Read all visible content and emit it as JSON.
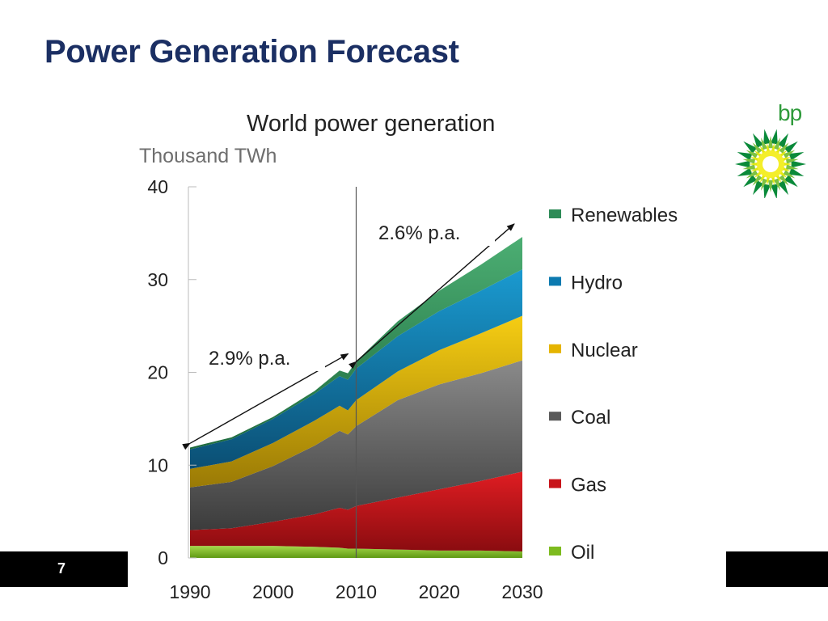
{
  "slide": {
    "title": "Power Generation Forecast",
    "page_number": "7",
    "logo_text": "bp"
  },
  "colors": {
    "title": "#1b2f63",
    "Oil": "#7dbb1f",
    "Gas": "#c8141a",
    "Coal": "#5a5a5a",
    "Nuclear": "#e5b400",
    "Hydro": "#0c7ab0",
    "Renewables": "#2e8b57"
  },
  "chart_data": {
    "type": "area",
    "stacked": true,
    "title": "World power generation",
    "ylabel": "Thousand TWh",
    "xlabel": "",
    "xlim": [
      1990,
      2030
    ],
    "ylim": [
      0,
      40
    ],
    "x_ticks": [
      "1990",
      "2000",
      "2010",
      "2020",
      "2030"
    ],
    "y_ticks": [
      "0",
      "10",
      "20",
      "30",
      "40"
    ],
    "legend_position": "right",
    "x": [
      1990,
      1995,
      2000,
      2005,
      2008,
      2009,
      2010,
      2015,
      2020,
      2025,
      2030
    ],
    "series": [
      {
        "name": "Oil",
        "values": [
          1.3,
          1.3,
          1.3,
          1.2,
          1.1,
          1.0,
          1.0,
          0.9,
          0.8,
          0.8,
          0.7
        ]
      },
      {
        "name": "Gas",
        "values": [
          1.7,
          1.9,
          2.6,
          3.5,
          4.3,
          4.2,
          4.6,
          5.6,
          6.6,
          7.5,
          8.6
        ]
      },
      {
        "name": "Coal",
        "values": [
          4.6,
          5.0,
          6.0,
          7.4,
          8.3,
          8.1,
          8.6,
          10.5,
          11.3,
          11.6,
          12.0
        ]
      },
      {
        "name": "Nuclear",
        "values": [
          2.0,
          2.2,
          2.5,
          2.7,
          2.7,
          2.6,
          2.8,
          3.1,
          3.7,
          4.3,
          4.8
        ]
      },
      {
        "name": "Hydro",
        "values": [
          2.1,
          2.4,
          2.6,
          2.9,
          3.2,
          3.3,
          3.4,
          3.8,
          4.2,
          4.6,
          5.0
        ]
      },
      {
        "name": "Renewables",
        "values": [
          0.2,
          0.2,
          0.2,
          0.3,
          0.6,
          0.7,
          0.8,
          1.6,
          2.2,
          2.8,
          3.5
        ]
      }
    ],
    "annotations": [
      {
        "text": "2.9% p.a.",
        "from": [
          1990,
          12.0
        ],
        "to": [
          2010,
          22.0
        ]
      },
      {
        "text": "2.6% p.a.",
        "from": [
          2010,
          20.8
        ],
        "to": [
          2030,
          36.0
        ]
      }
    ],
    "divider_year": 2010
  }
}
